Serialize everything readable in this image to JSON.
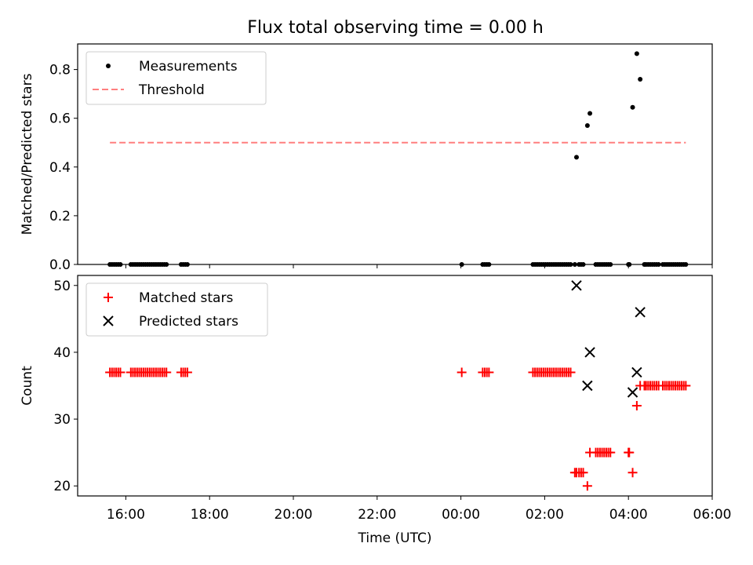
{
  "figure": {
    "title": "Flux total observing time = 0.00 h"
  },
  "chart_data": [
    {
      "type": "scatter",
      "title": "Flux total observing time = 0.00 h",
      "xlabel": "",
      "ylabel": "Matched/Predicted stars",
      "xlim_hours": [
        14.85,
        30.0
      ],
      "ylim": [
        0,
        0.905
      ],
      "x_ticks": [
        16,
        18,
        20,
        22,
        24,
        26,
        28,
        30
      ],
      "y_ticks": [
        0.0,
        0.2,
        0.4,
        0.6,
        0.8
      ],
      "y_tick_labels": [
        "0.0",
        "0.2",
        "0.4",
        "0.6",
        "0.8"
      ],
      "legend_position": "top-left",
      "grid": false,
      "series": [
        {
          "name": "Measurements",
          "marker": "dot",
          "color": "#000000",
          "x_hours": [
            15.62,
            15.67,
            15.72,
            15.77,
            15.82,
            15.87,
            16.12,
            16.17,
            16.22,
            16.27,
            16.32,
            16.37,
            16.42,
            16.47,
            16.52,
            16.57,
            16.62,
            16.67,
            16.72,
            16.77,
            16.82,
            16.87,
            16.92,
            16.97,
            17.32,
            17.37,
            17.42,
            17.47,
            24.02,
            24.52,
            24.57,
            24.62,
            24.67,
            25.72,
            25.77,
            25.82,
            25.87,
            25.92,
            25.97,
            26.02,
            26.07,
            26.12,
            26.17,
            26.22,
            26.27,
            26.32,
            26.37,
            26.42,
            26.47,
            26.52,
            26.57,
            26.62,
            26.72,
            26.76,
            26.82,
            26.87,
            26.92,
            27.02,
            27.08,
            27.22,
            27.27,
            27.32,
            27.37,
            27.42,
            27.47,
            27.52,
            27.57,
            28.0,
            28.02,
            28.1,
            28.2,
            28.28,
            28.38,
            28.42,
            28.47,
            28.52,
            28.57,
            28.62,
            28.67,
            28.72,
            28.82,
            28.87,
            28.92,
            28.97,
            29.02,
            29.07,
            29.12,
            29.17,
            29.22,
            29.27,
            29.32,
            29.37
          ],
          "values": [
            0,
            0,
            0,
            0,
            0,
            0,
            0,
            0,
            0,
            0,
            0,
            0,
            0,
            0,
            0,
            0,
            0,
            0,
            0,
            0,
            0,
            0,
            0,
            0,
            0,
            0,
            0,
            0,
            0,
            0,
            0,
            0,
            0,
            0,
            0,
            0,
            0,
            0,
            0,
            0,
            0,
            0,
            0,
            0,
            0,
            0,
            0,
            0,
            0,
            0,
            0,
            0,
            0,
            0.44,
            0,
            0,
            0,
            0.57,
            0.62,
            0,
            0,
            0,
            0,
            0,
            0,
            0,
            0,
            0,
            0,
            0.645,
            0.865,
            0.76,
            0,
            0,
            0,
            0,
            0,
            0,
            0,
            0,
            0,
            0,
            0,
            0,
            0,
            0,
            0,
            0,
            0,
            0,
            0,
            0
          ]
        },
        {
          "name": "Threshold",
          "marker": "dashed-line",
          "color": "#ff7f7f",
          "x_hours": [
            15.62,
            29.37
          ],
          "values": [
            0.5,
            0.5
          ]
        }
      ]
    },
    {
      "type": "scatter",
      "title": "",
      "xlabel": "Time (UTC)",
      "ylabel": "Count",
      "xlim_hours": [
        14.85,
        30.0
      ],
      "ylim": [
        18.5,
        51.5
      ],
      "x_ticks": [
        16,
        18,
        20,
        22,
        24,
        26,
        28,
        30
      ],
      "x_tick_labels": [
        "16:00",
        "18:00",
        "20:00",
        "22:00",
        "00:00",
        "02:00",
        "04:00",
        "06:00"
      ],
      "y_ticks": [
        20,
        30,
        40,
        50
      ],
      "y_tick_labels": [
        "20",
        "30",
        "40",
        "50"
      ],
      "legend_position": "top-left",
      "grid": false,
      "series": [
        {
          "name": "Matched stars",
          "marker": "plus",
          "color": "#ff0000",
          "x_hours": [
            15.62,
            15.67,
            15.72,
            15.77,
            15.82,
            15.87,
            16.12,
            16.17,
            16.22,
            16.27,
            16.32,
            16.37,
            16.42,
            16.47,
            16.52,
            16.57,
            16.62,
            16.67,
            16.72,
            16.77,
            16.82,
            16.87,
            16.92,
            16.97,
            17.32,
            17.37,
            17.42,
            17.47,
            24.02,
            24.52,
            24.57,
            24.62,
            24.67,
            25.72,
            25.77,
            25.82,
            25.87,
            25.92,
            25.97,
            26.02,
            26.07,
            26.12,
            26.17,
            26.22,
            26.27,
            26.32,
            26.37,
            26.42,
            26.47,
            26.52,
            26.57,
            26.62,
            26.72,
            26.76,
            26.82,
            26.87,
            26.92,
            27.02,
            27.08,
            27.22,
            27.27,
            27.32,
            27.37,
            27.42,
            27.47,
            27.52,
            27.57,
            28.0,
            28.02,
            28.1,
            28.2,
            28.28,
            28.38,
            28.42,
            28.47,
            28.52,
            28.57,
            28.62,
            28.67,
            28.72,
            28.82,
            28.87,
            28.92,
            28.97,
            29.02,
            29.07,
            29.12,
            29.17,
            29.22,
            29.27,
            29.32,
            29.37
          ],
          "values": [
            37,
            37,
            37,
            37,
            37,
            37,
            37,
            37,
            37,
            37,
            37,
            37,
            37,
            37,
            37,
            37,
            37,
            37,
            37,
            37,
            37,
            37,
            37,
            37,
            37,
            37,
            37,
            37,
            37,
            37,
            37,
            37,
            37,
            37,
            37,
            37,
            37,
            37,
            37,
            37,
            37,
            37,
            37,
            37,
            37,
            37,
            37,
            37,
            37,
            37,
            37,
            37,
            22,
            22,
            22,
            22,
            22,
            20,
            25,
            25,
            25,
            25,
            25,
            25,
            25,
            25,
            25,
            25,
            25,
            22,
            32,
            35,
            35,
            35,
            35,
            35,
            35,
            35,
            35,
            35,
            35,
            35,
            35,
            35,
            35,
            35,
            35,
            35,
            35,
            35,
            35,
            35
          ]
        },
        {
          "name": "Predicted stars",
          "marker": "x",
          "color": "#000000",
          "x_hours": [
            26.76,
            27.02,
            27.08,
            28.1,
            28.2,
            28.28
          ],
          "values": [
            50,
            35,
            40,
            34,
            37,
            46
          ]
        }
      ]
    }
  ]
}
